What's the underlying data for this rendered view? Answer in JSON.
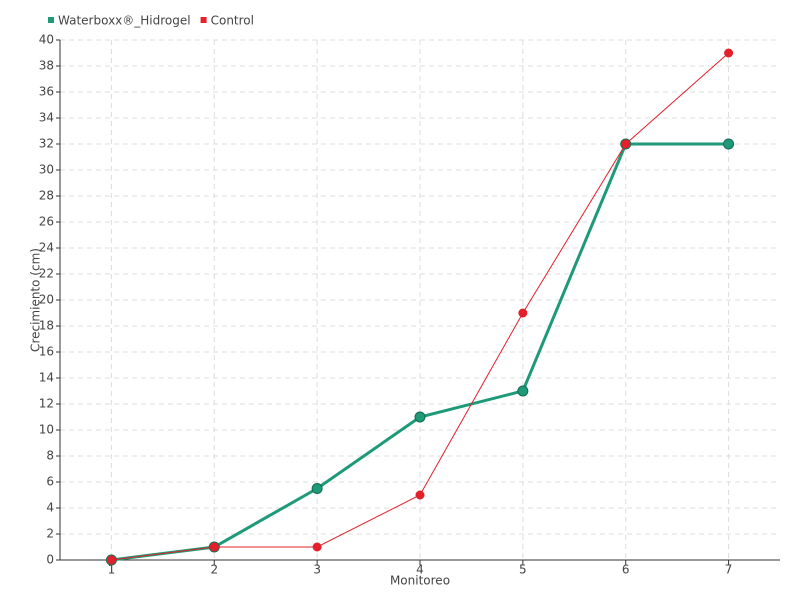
{
  "chart_data": {
    "type": "line",
    "categories": [
      "1",
      "2",
      "3",
      "4",
      "5",
      "6",
      "7"
    ],
    "x_label": "Monitoreo",
    "y_label": "Crecimiento (cm)",
    "series": [
      {
        "name": "Waterboxx®_Hidrogel",
        "color": "#1e9a78",
        "values": [
          0,
          1,
          5.5,
          11,
          13,
          32,
          32
        ]
      },
      {
        "name": "Control",
        "color": "#e3202b",
        "values": [
          0,
          1,
          1,
          5,
          19,
          32,
          39
        ]
      }
    ],
    "ylim": [
      0,
      40
    ],
    "yticks": [
      0,
      2,
      4,
      6,
      8,
      10,
      12,
      14,
      16,
      18,
      20,
      22,
      24,
      26,
      28,
      30,
      32,
      34,
      36,
      38,
      40
    ],
    "grid": true,
    "legend": "top-left"
  }
}
